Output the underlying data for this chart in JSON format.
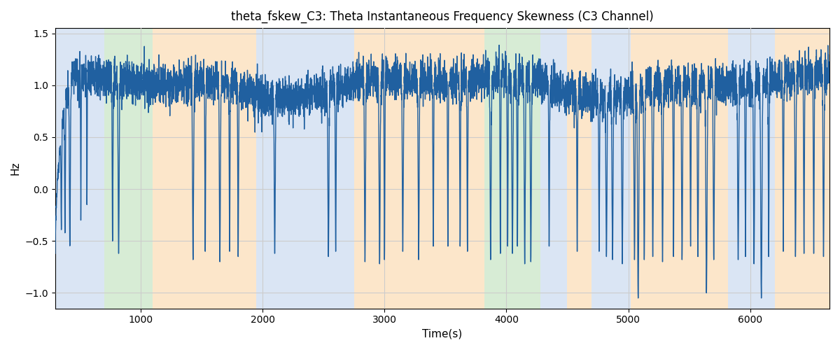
{
  "title": "theta_fskew_C3: Theta Instantaneous Frequency Skewness (C3 Channel)",
  "xlabel": "Time(s)",
  "ylabel": "Hz",
  "xlim": [
    300,
    6650
  ],
  "ylim": [
    -1.15,
    1.55
  ],
  "yticks": [
    -1.0,
    -0.5,
    0.0,
    0.5,
    1.0,
    1.5
  ],
  "xticks": [
    1000,
    2000,
    3000,
    4000,
    5000,
    6000
  ],
  "line_color": "#2060a0",
  "line_width": 1.0,
  "bg_regions": [
    {
      "xmin": 300,
      "xmax": 700,
      "color": "#aec6e8",
      "alpha": 0.45
    },
    {
      "xmin": 700,
      "xmax": 1100,
      "color": "#a8d5a2",
      "alpha": 0.45
    },
    {
      "xmin": 1100,
      "xmax": 1950,
      "color": "#f9c98a",
      "alpha": 0.45
    },
    {
      "xmin": 1950,
      "xmax": 2750,
      "color": "#aec6e8",
      "alpha": 0.45
    },
    {
      "xmin": 2750,
      "xmax": 3820,
      "color": "#f9c98a",
      "alpha": 0.45
    },
    {
      "xmin": 3820,
      "xmax": 4280,
      "color": "#a8d5a2",
      "alpha": 0.45
    },
    {
      "xmin": 4280,
      "xmax": 4500,
      "color": "#aec6e8",
      "alpha": 0.45
    },
    {
      "xmin": 4500,
      "xmax": 4700,
      "color": "#f9c98a",
      "alpha": 0.45
    },
    {
      "xmin": 4700,
      "xmax": 5020,
      "color": "#aec6e8",
      "alpha": 0.45
    },
    {
      "xmin": 5020,
      "xmax": 5820,
      "color": "#f9c98a",
      "alpha": 0.45
    },
    {
      "xmin": 5820,
      "xmax": 6200,
      "color": "#aec6e8",
      "alpha": 0.45
    },
    {
      "xmin": 6200,
      "xmax": 6650,
      "color": "#f9c98a",
      "alpha": 0.45
    }
  ],
  "grid_color": "#cccccc",
  "grid_linewidth": 0.8,
  "figsize": [
    12,
    5
  ],
  "dpi": 100
}
